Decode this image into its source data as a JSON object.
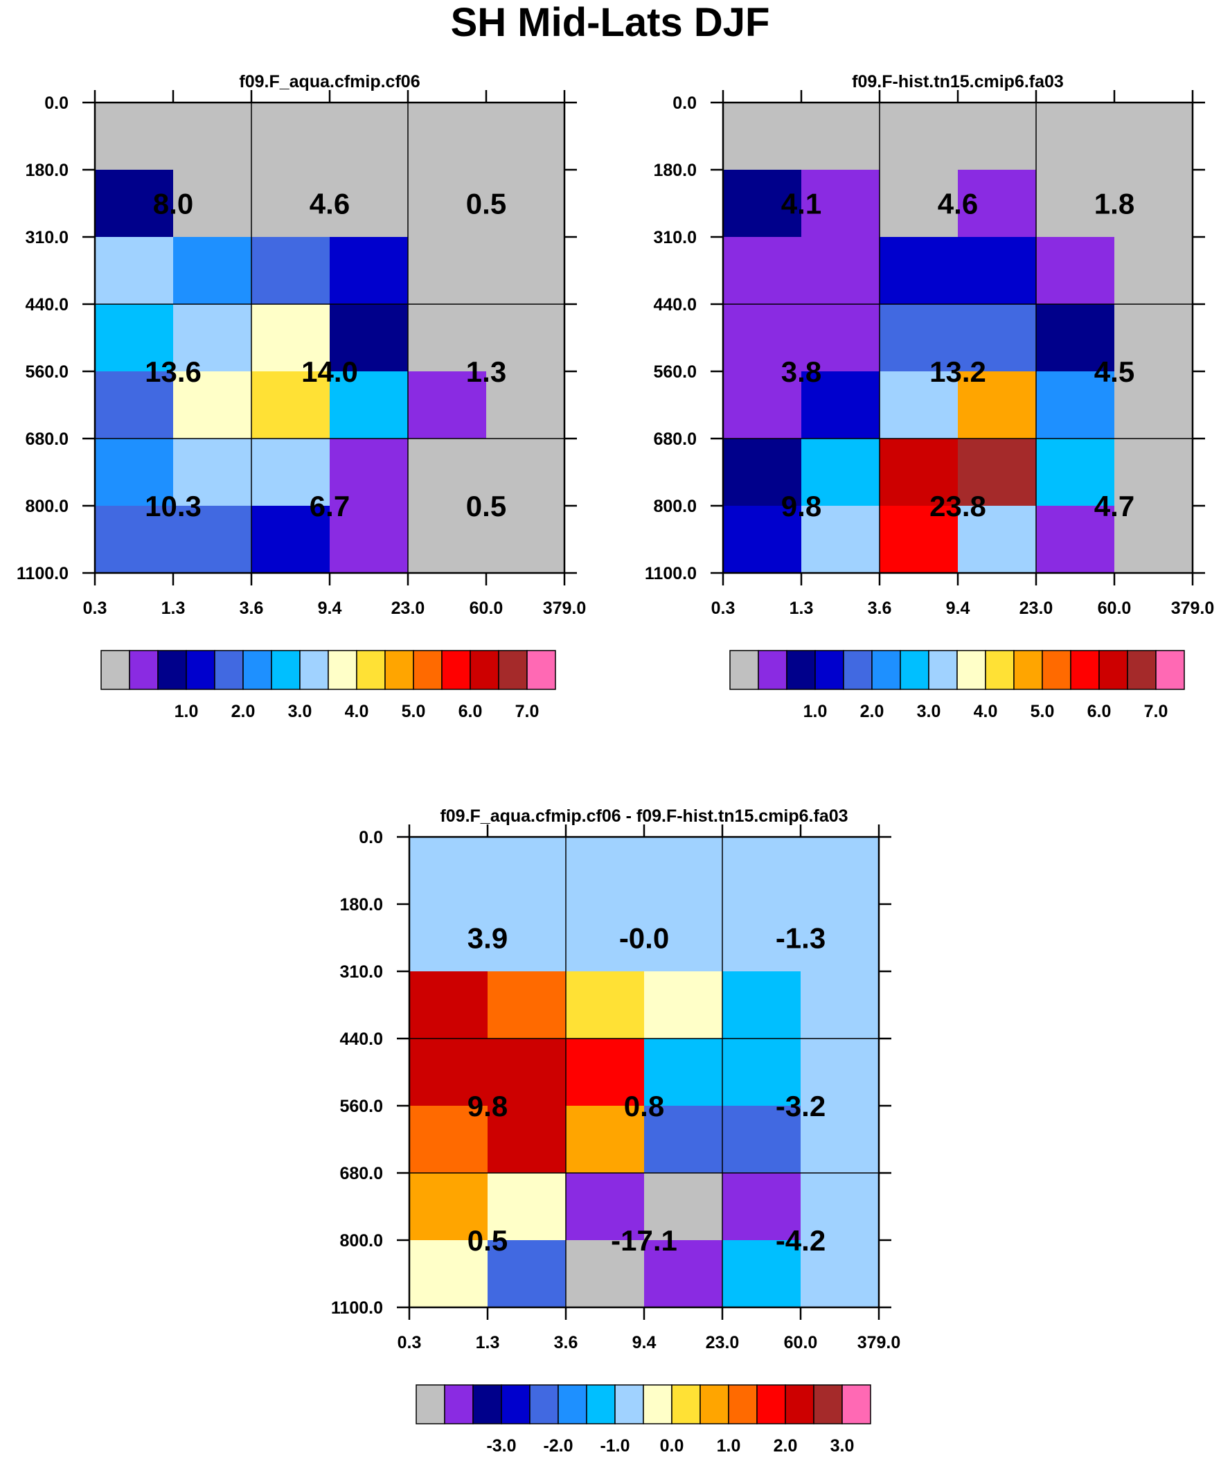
{
  "title": "SH Mid-Lats DJF",
  "palette": [
    "#c0c0c0",
    "#8a2be2",
    "#00008b",
    "#0000cd",
    "#4169e1",
    "#1e90ff",
    "#00bfff",
    "#a0d2ff",
    "#ffffc8",
    "#ffe135",
    "#ffa500",
    "#ff6a00",
    "#ff0000",
    "#cd0000",
    "#a52a2a",
    "#ff69b4"
  ],
  "chart_data": [
    {
      "type": "heatmap",
      "title": "f09.F_aqua.cfmip.cf06",
      "x_ticks": [
        "0.3",
        "1.3",
        "3.6",
        "9.4",
        "23.0",
        "60.0",
        "379.0"
      ],
      "y_ticks": [
        "0.0",
        "180.0",
        "310.0",
        "440.0",
        "560.0",
        "680.0",
        "800.0",
        "1100.0"
      ],
      "cells": [
        [
          0,
          0,
          0,
          0,
          0,
          0
        ],
        [
          2,
          0,
          0,
          0,
          0,
          0
        ],
        [
          7,
          5,
          4,
          3,
          0,
          0
        ],
        [
          6,
          7,
          8,
          2,
          0,
          0
        ],
        [
          4,
          8,
          9,
          6,
          1,
          0
        ],
        [
          5,
          7,
          7,
          1,
          0,
          0
        ],
        [
          4,
          4,
          3,
          1,
          0,
          0
        ]
      ],
      "summary": [
        [
          "8.0",
          "4.6",
          "0.5"
        ],
        [
          "13.6",
          "14.0",
          "1.3"
        ],
        [
          "10.3",
          "6.7",
          "0.5"
        ]
      ],
      "colorbar_labels": [
        "1.0",
        "2.0",
        "3.0",
        "4.0",
        "5.0",
        "6.0",
        "7.0"
      ]
    },
    {
      "type": "heatmap",
      "title": "f09.F-hist.tn15.cmip6.fa03",
      "x_ticks": [
        "0.3",
        "1.3",
        "3.6",
        "9.4",
        "23.0",
        "60.0",
        "379.0"
      ],
      "y_ticks": [
        "0.0",
        "180.0",
        "310.0",
        "440.0",
        "560.0",
        "680.0",
        "800.0",
        "1100.0"
      ],
      "cells": [
        [
          0,
          0,
          0,
          0,
          0,
          0
        ],
        [
          2,
          1,
          0,
          1,
          0,
          0
        ],
        [
          1,
          1,
          3,
          3,
          1,
          0
        ],
        [
          1,
          1,
          4,
          4,
          2,
          0
        ],
        [
          1,
          3,
          7,
          10,
          5,
          0
        ],
        [
          2,
          6,
          13,
          14,
          6,
          0
        ],
        [
          3,
          7,
          12,
          7,
          1,
          0
        ]
      ],
      "summary": [
        [
          "4.1",
          "4.6",
          "1.8"
        ],
        [
          "3.8",
          "13.2",
          "4.5"
        ],
        [
          "9.8",
          "23.8",
          "4.7"
        ]
      ],
      "colorbar_labels": [
        "1.0",
        "2.0",
        "3.0",
        "4.0",
        "5.0",
        "6.0",
        "7.0"
      ]
    },
    {
      "type": "heatmap",
      "title": "f09.F_aqua.cfmip.cf06 - f09.F-hist.tn15.cmip6.fa03",
      "x_ticks": [
        "0.3",
        "1.3",
        "3.6",
        "9.4",
        "23.0",
        "60.0",
        "379.0"
      ],
      "y_ticks": [
        "0.0",
        "180.0",
        "310.0",
        "440.0",
        "560.0",
        "680.0",
        "800.0",
        "1100.0"
      ],
      "cells": [
        [
          7,
          7,
          7,
          7,
          7,
          7
        ],
        [
          7,
          7,
          7,
          7,
          7,
          7
        ],
        [
          13,
          11,
          9,
          8,
          6,
          7
        ],
        [
          13,
          13,
          12,
          6,
          6,
          7
        ],
        [
          11,
          13,
          10,
          4,
          4,
          7
        ],
        [
          10,
          8,
          1,
          0,
          1,
          7
        ],
        [
          8,
          4,
          0,
          1,
          6,
          7
        ]
      ],
      "summary": [
        [
          "3.9",
          "-0.0",
          "-1.3"
        ],
        [
          "9.8",
          "0.8",
          "-3.2"
        ],
        [
          "0.5",
          "-17.1",
          "-4.2"
        ]
      ],
      "colorbar_labels": [
        "-3.0",
        "-2.0",
        "-1.0",
        "0.0",
        "1.0",
        "2.0",
        "3.0"
      ]
    }
  ]
}
